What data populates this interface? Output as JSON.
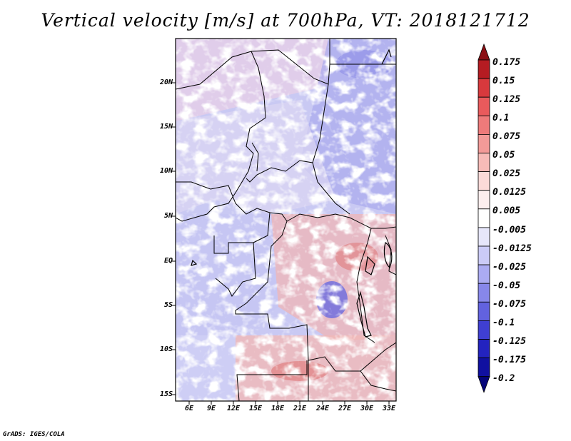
{
  "title": "Vertical velocity [m/s] at 700hPa, VT: 2018121712",
  "credit": "GrADS: IGES/COLA",
  "map": {
    "lat_labels": [
      "20N",
      "15N",
      "10N",
      "5N",
      "EQ",
      "5S",
      "10S",
      "15S"
    ],
    "lon_labels": [
      "6E",
      "9E",
      "12E",
      "15E",
      "18E",
      "21E",
      "24E",
      "27E",
      "30E",
      "33E"
    ]
  },
  "colorbar": {
    "labels": [
      "0.175",
      "0.15",
      "0.125",
      "0.1",
      "0.075",
      "0.05",
      "0.025",
      "0.0125",
      "0.005",
      "-0.005",
      "-0.0125",
      "-0.025",
      "-0.05",
      "-0.075",
      "-0.1",
      "-0.125",
      "-0.175",
      "-0.2"
    ],
    "colors": [
      "#8b0f14",
      "#b51c22",
      "#d8393d",
      "#e95a5c",
      "#ee7a7a",
      "#f39a98",
      "#f7bbb8",
      "#fbdad8",
      "#fdeeee",
      "#ffffff",
      "#e6e6fa",
      "#cbcbf7",
      "#ababf2",
      "#8787ea",
      "#6262df",
      "#3f3fd2",
      "#2323bf",
      "#1010a0",
      "#05057a"
    ]
  }
}
